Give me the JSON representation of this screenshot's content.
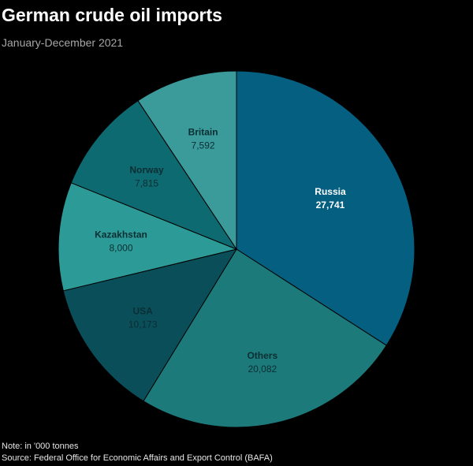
{
  "chart_data": {
    "type": "pie",
    "title": "German crude oil imports",
    "subtitle": "January-December 2021",
    "categories": [
      "Russia",
      "Others",
      "USA",
      "Kazakhstan",
      "Norway",
      "Britain"
    ],
    "values": [
      27741,
      20082,
      10173,
      8000,
      7815,
      7592
    ],
    "value_labels": [
      "27,741",
      "20,082",
      "10,173",
      "8,000",
      "7,815",
      "7,592"
    ],
    "colors": [
      "#045f80",
      "#1c7a7b",
      "#0a4e59",
      "#2c9b97",
      "#0d6a70",
      "#3b9a9a"
    ],
    "start": "12 o'clock, clockwise",
    "legend": "none (labels on slices)",
    "note": "Note: in '000 tonnes",
    "source": "Source: Federal Office for Economic Affairs and Export Control (BAFA)"
  }
}
